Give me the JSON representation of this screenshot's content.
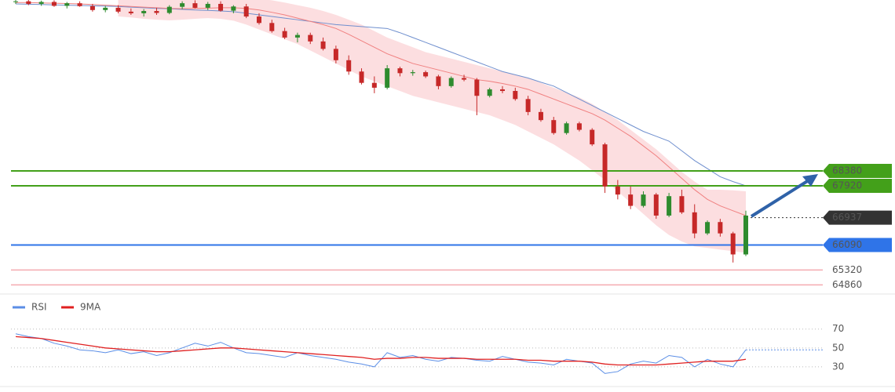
{
  "chart_data": [
    {
      "type": "candlestick",
      "open": [
        73600,
        73620,
        73540,
        73600,
        73480,
        73560,
        73470,
        73350,
        73420,
        73300,
        73250,
        73320,
        73260,
        73450,
        73560,
        73420,
        73540,
        73330,
        73460,
        73150,
        72950,
        72700,
        72500,
        72580,
        72380,
        72150,
        71800,
        71450,
        71100,
        70950,
        71550,
        71400,
        71430,
        71300,
        71000,
        71250,
        71200,
        70700,
        70900,
        70850,
        70600,
        70200,
        69950,
        69550,
        69850,
        69650,
        69200,
        67900,
        67650,
        67300,
        67650,
        67000,
        67600,
        67100,
        66450,
        66800,
        66450,
        65800
      ],
      "high": [
        73680,
        73660,
        73640,
        73650,
        73600,
        73620,
        73540,
        73480,
        73500,
        73400,
        73380,
        73420,
        73500,
        73620,
        73650,
        73600,
        73620,
        73500,
        73540,
        73250,
        73050,
        72800,
        72650,
        72650,
        72500,
        72250,
        71950,
        71550,
        71300,
        71650,
        71600,
        71500,
        71480,
        71350,
        71300,
        71350,
        71250,
        70950,
        71000,
        70950,
        70700,
        70300,
        70050,
        69900,
        69900,
        69700,
        69250,
        68100,
        67900,
        67750,
        67700,
        67700,
        67800,
        67350,
        66850,
        66900,
        66500,
        67150
      ],
      "low": [
        73540,
        73500,
        73480,
        73450,
        73400,
        73450,
        73300,
        73280,
        73250,
        73200,
        73150,
        73200,
        73220,
        73380,
        73400,
        73350,
        73300,
        73250,
        73100,
        72900,
        72650,
        72450,
        72350,
        72300,
        72100,
        71700,
        71350,
        71050,
        70780,
        70900,
        71300,
        71320,
        71250,
        70900,
        70950,
        71150,
        70100,
        70650,
        70780,
        70550,
        70100,
        69900,
        69500,
        69500,
        69600,
        69150,
        67700,
        67500,
        67200,
        67250,
        66900,
        66950,
        67050,
        66300,
        66400,
        66350,
        65550,
        65750
      ],
      "close": [
        73620,
        73540,
        73600,
        73480,
        73560,
        73470,
        73350,
        73420,
        73300,
        73250,
        73320,
        73260,
        73450,
        73560,
        73420,
        73540,
        73330,
        73460,
        73150,
        72950,
        72700,
        72500,
        72580,
        72380,
        72150,
        71800,
        71450,
        71100,
        70950,
        71550,
        71400,
        71430,
        71300,
        71000,
        71250,
        71200,
        70700,
        70900,
        70850,
        70600,
        70200,
        69950,
        69550,
        69850,
        69650,
        69200,
        67900,
        67650,
        67300,
        67650,
        67000,
        67600,
        67100,
        66450,
        66800,
        66450,
        65800,
        67000
      ],
      "up_color": "#2e8b2e",
      "down_color": "#c62828",
      "ma_fast": {
        "color": "#f08080",
        "values": [
          73580,
          73580,
          73570,
          73560,
          73550,
          73540,
          73520,
          73500,
          73480,
          73460,
          73440,
          73420,
          73400,
          73390,
          73400,
          73410,
          73420,
          73420,
          73400,
          73350,
          73280,
          73200,
          73100,
          73000,
          72900,
          72780,
          72600,
          72400,
          72200,
          72000,
          71850,
          71700,
          71600,
          71500,
          71400,
          71300,
          71200,
          71150,
          71080,
          71000,
          70900,
          70750,
          70600,
          70450,
          70300,
          70150,
          69950,
          69700,
          69450,
          69150,
          68850,
          68500,
          68150,
          67800,
          67500,
          67300,
          67150,
          67000
        ]
      },
      "ma_slow": {
        "color": "#6f8fce",
        "values": [
          73540,
          73530,
          73520,
          73510,
          73500,
          73490,
          73480,
          73470,
          73460,
          73440,
          73420,
          73400,
          73390,
          73370,
          73350,
          73340,
          73320,
          73300,
          73250,
          73200,
          73150,
          73100,
          73050,
          73000,
          72950,
          72900,
          72870,
          72840,
          72810,
          72780,
          72650,
          72500,
          72350,
          72200,
          72050,
          71900,
          71750,
          71600,
          71450,
          71350,
          71250,
          71120,
          71000,
          70800,
          70600,
          70400,
          70200,
          70000,
          69800,
          69600,
          69450,
          69300,
          69000,
          68700,
          68450,
          68200,
          68050,
          67920
        ]
      },
      "band": {
        "color": "#fbd3d6",
        "upper": [
          null,
          null,
          null,
          null,
          null,
          null,
          null,
          null,
          73700,
          73720,
          73720,
          73710,
          73700,
          73700,
          73720,
          73740,
          73760,
          73760,
          73740,
          73700,
          73650,
          73580,
          73500,
          73420,
          73320,
          73200,
          73050,
          72900,
          72700,
          72500,
          72350,
          72200,
          72050,
          71950,
          71850,
          71750,
          71650,
          71550,
          71450,
          71350,
          71250,
          71100,
          70950,
          70800,
          70650,
          70450,
          70200,
          69950,
          69650,
          69350,
          69050,
          68700,
          68350,
          68050,
          67800,
          67800,
          67780,
          67750
        ],
        "lower": [
          null,
          null,
          null,
          null,
          null,
          null,
          null,
          null,
          73150,
          73120,
          73080,
          73050,
          73030,
          73050,
          73080,
          73100,
          73080,
          73020,
          72900,
          72750,
          72600,
          72450,
          72300,
          72100,
          71900,
          71700,
          71500,
          71300,
          71150,
          71000,
          70850,
          70700,
          70600,
          70500,
          70400,
          70300,
          70200,
          70100,
          69950,
          69800,
          69600,
          69400,
          69200,
          68950,
          68700,
          68400,
          68100,
          67750,
          67400,
          67050,
          66700,
          66400,
          66200,
          66050,
          66000,
          65950,
          65900,
          65850
        ]
      },
      "ylim": [
        64650,
        73660
      ],
      "levels": [
        {
          "value": 68380,
          "color": "#43a01a",
          "text_color": "#ffffff",
          "boxed": true
        },
        {
          "value": 67920,
          "color": "#43a01a",
          "text_color": "#ffffff",
          "boxed": true
        },
        {
          "value": 66937,
          "color": "#333333",
          "text_color": "#ffffff",
          "boxed": true,
          "dotted": true
        },
        {
          "value": 66090,
          "color": "#2f74e8",
          "text_color": "#ffffff",
          "boxed": true
        },
        {
          "value": 65320,
          "color": "#f4aab0",
          "text_color": "#e53935",
          "boxed": false
        },
        {
          "value": 64860,
          "color": "#f4aab0",
          "text_color": "#e53935",
          "boxed": false
        }
      ]
    },
    {
      "type": "line",
      "series": [
        {
          "name": "RSI",
          "color": "#5b8ee6",
          "values": [
            65,
            62,
            60,
            55,
            52,
            48,
            47,
            45,
            48,
            44,
            46,
            42,
            45,
            50,
            55,
            52,
            56,
            50,
            45,
            44,
            42,
            40,
            45,
            42,
            40,
            38,
            35,
            33,
            30,
            45,
            40,
            42,
            38,
            36,
            40,
            39,
            37,
            36,
            41,
            38,
            35,
            34,
            32,
            38,
            36,
            34,
            23,
            25,
            33,
            36,
            34,
            42,
            40,
            30,
            38,
            33,
            30,
            48
          ]
        },
        {
          "name": "9MA",
          "color": "#e02020",
          "values": [
            62,
            61,
            60,
            58,
            56,
            54,
            52,
            50,
            49,
            48,
            47,
            46,
            46,
            47,
            48,
            49,
            50,
            50,
            49,
            48,
            47,
            46,
            45,
            44,
            43,
            42,
            41,
            40,
            38,
            39,
            39,
            40,
            40,
            39,
            39,
            39,
            38,
            38,
            38,
            38,
            37,
            37,
            36,
            36,
            36,
            35,
            33,
            32,
            32,
            32,
            32,
            33,
            34,
            35,
            36,
            36,
            36,
            38
          ]
        }
      ],
      "ylim": [
        10,
        103
      ],
      "yticks": [
        70,
        50,
        30
      ],
      "grid": true
    }
  ]
}
